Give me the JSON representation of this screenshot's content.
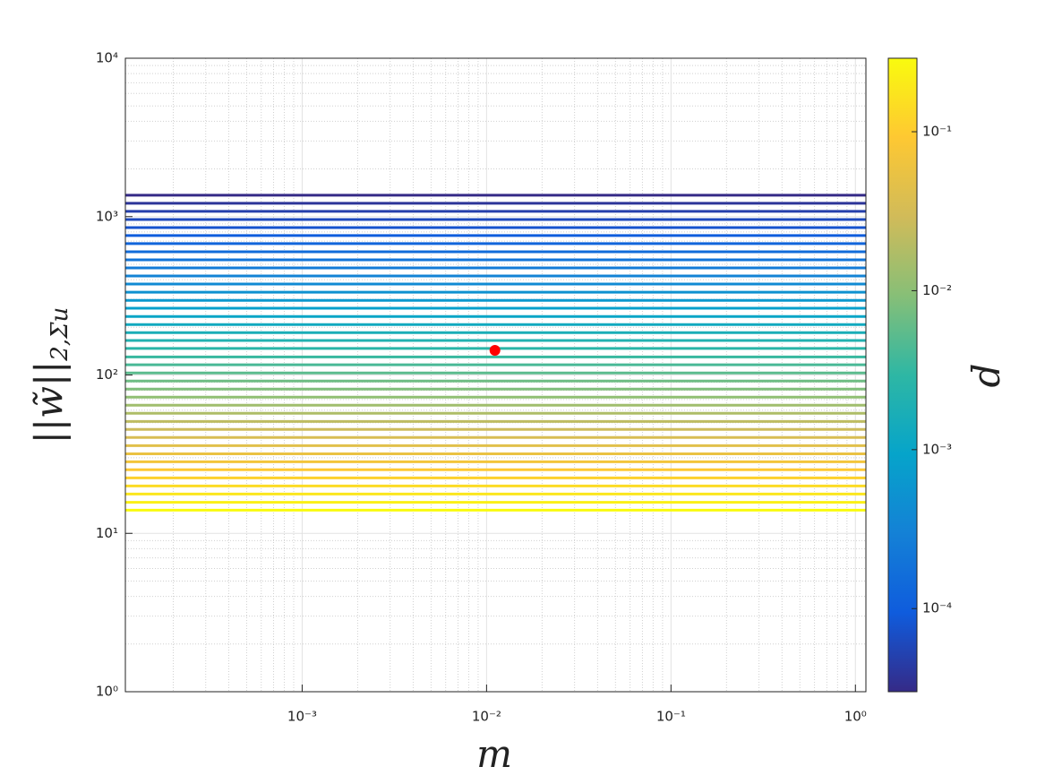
{
  "chart_data": {
    "type": "contour-lines",
    "xlabel": "m",
    "ylabel": {
      "text": "||w̃||",
      "subscript": "2,Σu"
    },
    "colorbar_label": "d",
    "xscale": "log",
    "yscale": "log",
    "colorbar_scale": "log",
    "xlim": [
      0.00011,
      1.14
    ],
    "ylim": [
      1,
      10000
    ],
    "clim": [
      3e-05,
      0.29
    ],
    "xticks": [
      {
        "value": 0.001,
        "label": "10⁻³"
      },
      {
        "value": 0.01,
        "label": "10⁻²"
      },
      {
        "value": 0.1,
        "label": "10⁻¹"
      },
      {
        "value": 1,
        "label": "10⁰"
      }
    ],
    "yticks": [
      {
        "value": 1,
        "label": "10⁰"
      },
      {
        "value": 10,
        "label": "10¹"
      },
      {
        "value": 100,
        "label": "10²"
      },
      {
        "value": 1000,
        "label": "10³"
      },
      {
        "value": 10000,
        "label": "10⁴"
      }
    ],
    "cticks": [
      {
        "value": 0.0001,
        "label": "10⁻⁴"
      },
      {
        "value": 0.001,
        "label": "10⁻³"
      },
      {
        "value": 0.01,
        "label": "10⁻²"
      },
      {
        "value": 0.1,
        "label": "10⁻¹"
      }
    ],
    "grid": true,
    "minor_grid": true,
    "colormap": [
      "#352a87",
      "#0f5cdd",
      "#1481d6",
      "#06a4ca",
      "#2eb7a4",
      "#87bf77",
      "#d1bb59",
      "#fec832",
      "#f9fb0e"
    ],
    "levels": {
      "w": [
        1365,
        1213,
        1079,
        959,
        853,
        759,
        675,
        600,
        533,
        474,
        422,
        375,
        333,
        296,
        264,
        234,
        208,
        185,
        165,
        147,
        130,
        116,
        103,
        91.6,
        81.5,
        72.4,
        64.4,
        57.3,
        50.9,
        45.3,
        40.3,
        35.8,
        31.8,
        28.3,
        25.2,
        22.4,
        19.9,
        17.7,
        15.7,
        14.0
      ],
      "d": [
        3.02e-05,
        3.82e-05,
        4.83e-05,
        6.11e-05,
        7.73e-05,
        9.77e-05,
        0.000124,
        0.000156,
        0.000198,
        0.00025,
        0.000316,
        0.0004,
        0.000506,
        0.00064,
        0.000809,
        0.00102,
        0.00129,
        0.00164,
        0.00207,
        0.00262,
        0.00331,
        0.00419,
        0.0053,
        0.0067,
        0.00847,
        0.0107,
        0.0136,
        0.0171,
        0.0217,
        0.0274,
        0.0347,
        0.0439,
        0.0555,
        0.0702,
        0.0887,
        0.112,
        0.142,
        0.179,
        0.227,
        0.287
      ]
    },
    "point": {
      "x": 0.0111,
      "y": 143,
      "color": "#ff0000"
    }
  }
}
